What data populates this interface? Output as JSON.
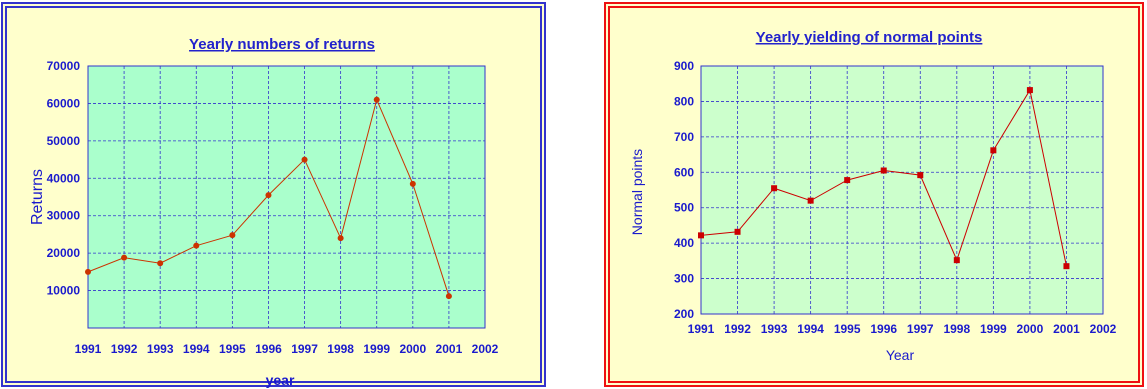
{
  "chart_data": [
    {
      "type": "line",
      "title": "Yearly numbers of returns",
      "xlabel": "year",
      "ylabel": "Returns",
      "x": [
        1991,
        1992,
        1993,
        1994,
        1995,
        1996,
        1997,
        1998,
        1999,
        2000,
        2001
      ],
      "x_ticks": [
        "1991",
        "1992",
        "1993",
        "1994",
        "1995",
        "1996",
        "1997",
        "1998",
        "1999",
        "2000",
        "2001",
        "2002"
      ],
      "y_ticks": [
        "70000",
        "60000",
        "50000",
        "40000",
        "30000",
        "20000",
        "10000"
      ],
      "xlim": [
        1991,
        2002
      ],
      "ylim": [
        0,
        70000
      ],
      "grid": true,
      "series": [
        {
          "values": [
            15000,
            18800,
            17300,
            22000,
            24800,
            35500,
            45000,
            24000,
            61000,
            38500,
            8500
          ]
        }
      ],
      "colors": {
        "background": "#ffffcc",
        "plot": "#aaffcc",
        "line": "#cc3300",
        "marker": "#cc3300",
        "grid": "#3333cc",
        "border": "#3333cc"
      }
    },
    {
      "type": "line",
      "title": "Yearly yielding of normal points",
      "xlabel": "Year",
      "ylabel": "Normal points",
      "x": [
        1991,
        1992,
        1993,
        1994,
        1995,
        1996,
        1997,
        1998,
        1999,
        2000,
        2001
      ],
      "x_ticks": [
        "1991",
        "1992",
        "1993",
        "1994",
        "1995",
        "1996",
        "1997",
        "1998",
        "1999",
        "2000",
        "2001",
        "2002"
      ],
      "y_ticks": [
        "900",
        "800",
        "700",
        "600",
        "500",
        "400",
        "300",
        "200"
      ],
      "xlim": [
        1991,
        2002
      ],
      "ylim": [
        200,
        900
      ],
      "grid": true,
      "series": [
        {
          "values": [
            422,
            432,
            555,
            520,
            578,
            605,
            592,
            352,
            662,
            832,
            335
          ]
        }
      ],
      "colors": {
        "background": "#ffffcc",
        "plot": "#ccffcc",
        "line": "#cc0000",
        "marker": "#cc0000",
        "grid": "#3333cc",
        "border": "#ee1111"
      }
    }
  ]
}
